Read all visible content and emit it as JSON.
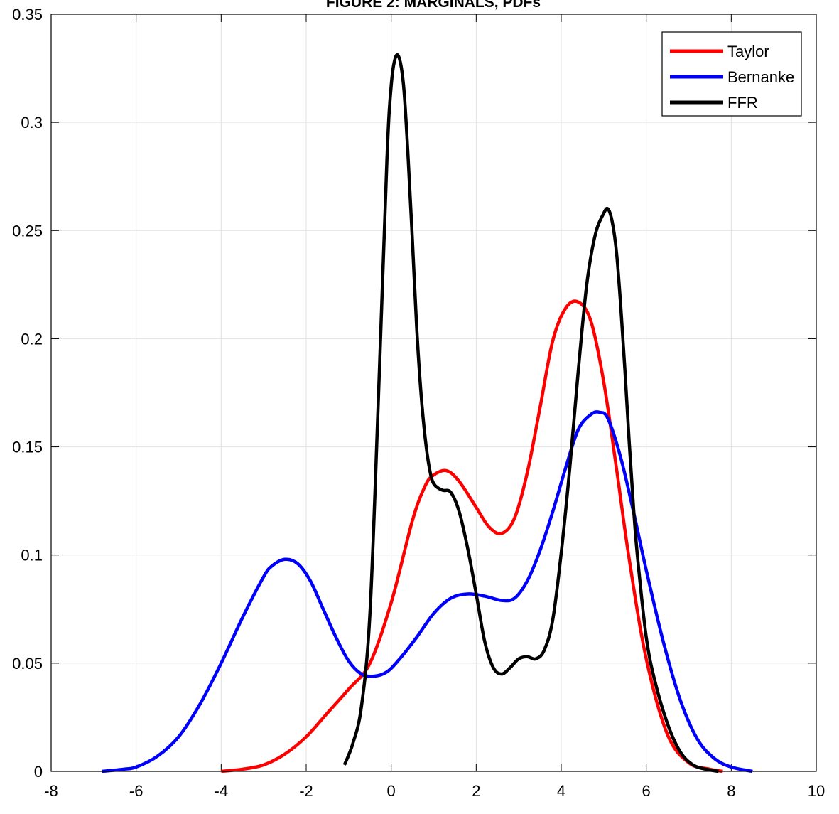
{
  "chart_data": {
    "type": "line",
    "title": "FIGURE 2: MARGINALS, PDFs",
    "xlabel": "",
    "ylabel": "",
    "xlim": [
      -8,
      10
    ],
    "ylim": [
      0,
      0.35
    ],
    "xticks": [
      -8,
      -6,
      -4,
      -2,
      0,
      2,
      4,
      6,
      8,
      10
    ],
    "xtick_labels": [
      "-8",
      "-6",
      "-4",
      "-2",
      "0",
      "2",
      "4",
      "6",
      "8",
      "10"
    ],
    "yticks": [
      0,
      0.05,
      0.1,
      0.15,
      0.2,
      0.25,
      0.3,
      0.35
    ],
    "ytick_labels": [
      "0",
      "0.05",
      "0.1",
      "0.15",
      "0.2",
      "0.25",
      "0.3",
      "0.35"
    ],
    "grid": true,
    "legend_position": "top-right",
    "series": [
      {
        "name": "Taylor",
        "color": "#ff0000",
        "x": [
          -4.0,
          -3.5,
          -3.0,
          -2.5,
          -2.0,
          -1.5,
          -1.0,
          -0.5,
          0.0,
          0.5,
          0.8,
          1.0,
          1.3,
          1.6,
          2.0,
          2.3,
          2.6,
          2.9,
          3.2,
          3.5,
          3.8,
          4.1,
          4.4,
          4.7,
          5.0,
          5.3,
          5.6,
          6.0,
          6.5,
          7.0,
          7.5,
          7.8
        ],
        "y": [
          0.0,
          0.001,
          0.003,
          0.008,
          0.016,
          0.027,
          0.038,
          0.05,
          0.078,
          0.116,
          0.132,
          0.137,
          0.139,
          0.134,
          0.122,
          0.113,
          0.11,
          0.117,
          0.138,
          0.168,
          0.199,
          0.214,
          0.217,
          0.208,
          0.18,
          0.14,
          0.098,
          0.052,
          0.017,
          0.004,
          0.001,
          0.0
        ]
      },
      {
        "name": "Bernanke",
        "color": "#0000ff",
        "x": [
          -6.8,
          -6.3,
          -6.0,
          -5.5,
          -5.0,
          -4.5,
          -4.0,
          -3.5,
          -3.0,
          -2.8,
          -2.5,
          -2.2,
          -1.9,
          -1.6,
          -1.3,
          -1.0,
          -0.7,
          -0.4,
          -0.1,
          0.2,
          0.6,
          1.0,
          1.4,
          1.8,
          2.2,
          2.6,
          2.9,
          3.2,
          3.5,
          3.8,
          4.1,
          4.4,
          4.7,
          4.9,
          5.1,
          5.4,
          5.7,
          6.0,
          6.4,
          6.8,
          7.2,
          7.6,
          8.0,
          8.5
        ],
        "y": [
          0.0,
          0.001,
          0.002,
          0.007,
          0.016,
          0.031,
          0.05,
          0.071,
          0.09,
          0.095,
          0.098,
          0.096,
          0.088,
          0.075,
          0.062,
          0.051,
          0.045,
          0.044,
          0.046,
          0.052,
          0.062,
          0.073,
          0.08,
          0.082,
          0.081,
          0.079,
          0.08,
          0.088,
          0.102,
          0.12,
          0.14,
          0.158,
          0.165,
          0.166,
          0.163,
          0.145,
          0.12,
          0.093,
          0.06,
          0.033,
          0.015,
          0.006,
          0.002,
          0.0
        ]
      },
      {
        "name": "FFR",
        "color": "#000000",
        "x": [
          -1.1,
          -0.9,
          -0.7,
          -0.5,
          -0.3,
          -0.1,
          0.0,
          0.1,
          0.2,
          0.3,
          0.4,
          0.5,
          0.6,
          0.7,
          0.8,
          0.9,
          1.0,
          1.2,
          1.4,
          1.6,
          1.8,
          2.0,
          2.2,
          2.4,
          2.6,
          2.8,
          3.0,
          3.2,
          3.4,
          3.6,
          3.8,
          4.0,
          4.2,
          4.4,
          4.6,
          4.8,
          5.0,
          5.1,
          5.2,
          5.3,
          5.4,
          5.5,
          5.6,
          5.7,
          5.8,
          6.0,
          6.2,
          6.5,
          6.8,
          7.1,
          7.4,
          7.7
        ],
        "y": [
          0.003,
          0.013,
          0.03,
          0.073,
          0.173,
          0.283,
          0.317,
          0.33,
          0.329,
          0.315,
          0.283,
          0.245,
          0.205,
          0.175,
          0.154,
          0.14,
          0.133,
          0.13,
          0.129,
          0.12,
          0.103,
          0.082,
          0.06,
          0.048,
          0.045,
          0.048,
          0.052,
          0.053,
          0.052,
          0.056,
          0.07,
          0.101,
          0.14,
          0.185,
          0.225,
          0.248,
          0.258,
          0.26,
          0.254,
          0.24,
          0.215,
          0.185,
          0.152,
          0.122,
          0.098,
          0.062,
          0.042,
          0.022,
          0.009,
          0.003,
          0.001,
          0.0
        ]
      }
    ]
  }
}
